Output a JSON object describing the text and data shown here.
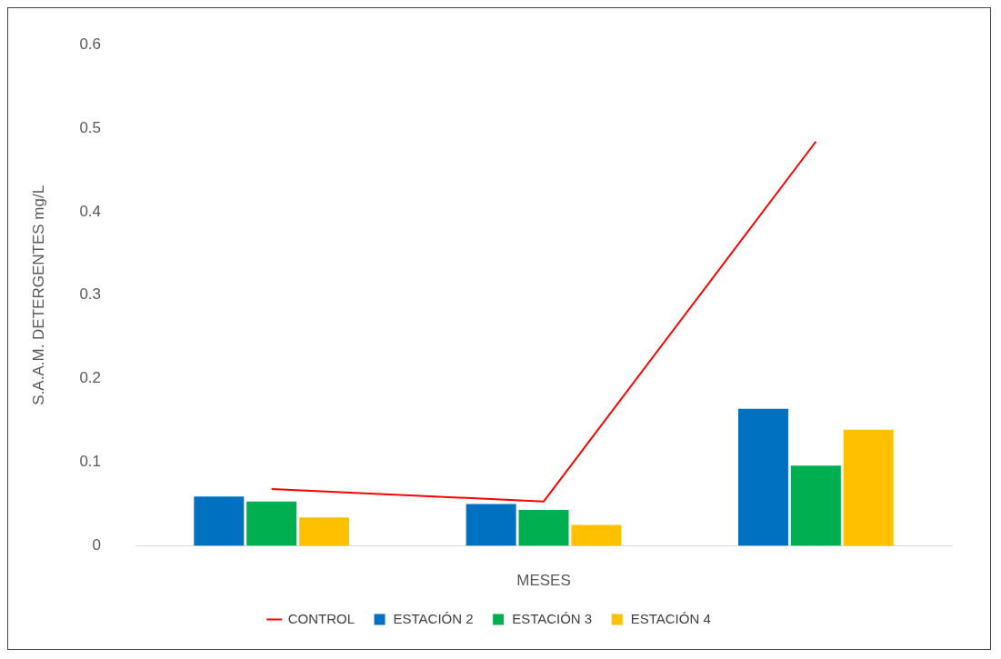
{
  "chart_data": {
    "type": "bar",
    "xlabel": "MESES",
    "ylabel": "S.A.A.M. DETERGENTES mg/L",
    "categories": [
      null,
      null,
      null
    ],
    "series": [
      {
        "name": "ESTACIÓN 2",
        "color": "#0070c0",
        "values": [
          0.059,
          0.05,
          0.164
        ]
      },
      {
        "name": "ESTACIÓN 3",
        "color": "#00b050",
        "values": [
          0.053,
          0.043,
          0.096
        ]
      },
      {
        "name": "ESTACIÓN 4",
        "color": "#ffc000",
        "values": [
          0.034,
          0.025,
          0.139
        ]
      },
      {
        "name": "CONTROL",
        "type": "line",
        "color": "#ff0000",
        "values": [
          0.068,
          0.053,
          0.484
        ]
      }
    ],
    "ylim": [
      0,
      0.6
    ],
    "yticks": [
      0,
      0.1,
      0.2,
      0.3,
      0.4,
      0.5,
      0.6
    ],
    "grid": false,
    "legend": "bottom",
    "marker": "none"
  }
}
